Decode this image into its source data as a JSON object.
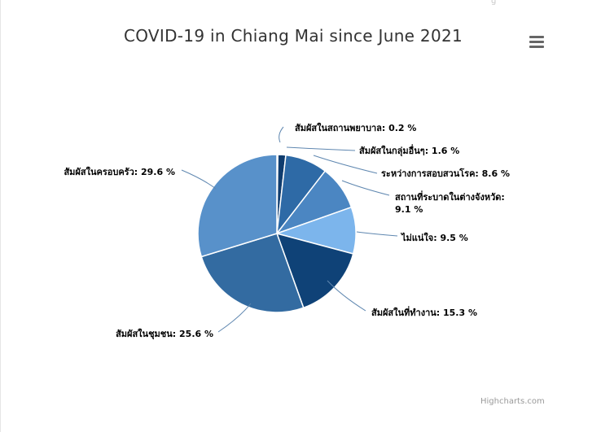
{
  "title": "COVID-19 in Chiang Mai since June 2021",
  "credits": "Highcharts.com",
  "menu_icon": "hamburger-menu-icon",
  "top_mark": "ǵ",
  "chart_data": {
    "type": "pie",
    "title": "COVID-19 in Chiang Mai since June 2021",
    "start_angle_deg": 0,
    "slices": [
      {
        "name": "สัมผัสในสถานพยาบาล",
        "value": 0.2,
        "label_lines": [
          "สัมผัสในสถานพยาบาล: 0.2 %"
        ],
        "color": "#4572a7"
      },
      {
        "name": "สัมผัสในกลุ่มอื่นๆ",
        "value": 1.6,
        "label_lines": [
          "สัมผัสในกลุ่มอื่นๆ: 1.6 %"
        ],
        "color": "#0f3c6e"
      },
      {
        "name": "ระหว่างการสอบสวนโรค",
        "value": 8.6,
        "label_lines": [
          "ระหว่างการสอบสวนโรค: 8.6 %"
        ],
        "color": "#2e6aa6"
      },
      {
        "name": "สถานที่ระบาดในต่างจังหวัด",
        "value": 9.1,
        "label_lines": [
          "สถานที่ระบาดในต่างจังหวัด:",
          "9.1 %"
        ],
        "color": "#4b86c2"
      },
      {
        "name": "ไม่แน่ใจ",
        "value": 9.5,
        "label_lines": [
          "ไม่แน่ใจ: 9.5 %"
        ],
        "color": "#7cb5ec"
      },
      {
        "name": "สัมผัสในที่ทำงาน",
        "value": 15.3,
        "label_lines": [
          "สัมผัสในที่ทำงาน: 15.3 %"
        ],
        "color": "#0f4277"
      },
      {
        "name": "สัมผัสในชุมชน",
        "value": 25.6,
        "label_lines": [
          "สัมผัสในชุมชน: 25.6 %"
        ],
        "color": "#336ba1"
      },
      {
        "name": "สัมผัสในครอบครัว",
        "value": 29.6,
        "label_lines": [
          "สัมผัสในครอบครัว: 29.6 %"
        ],
        "color": "#5891ca"
      }
    ],
    "slice_border": "#ffffff",
    "connector_color": "#5f87b0",
    "legend": "none"
  }
}
